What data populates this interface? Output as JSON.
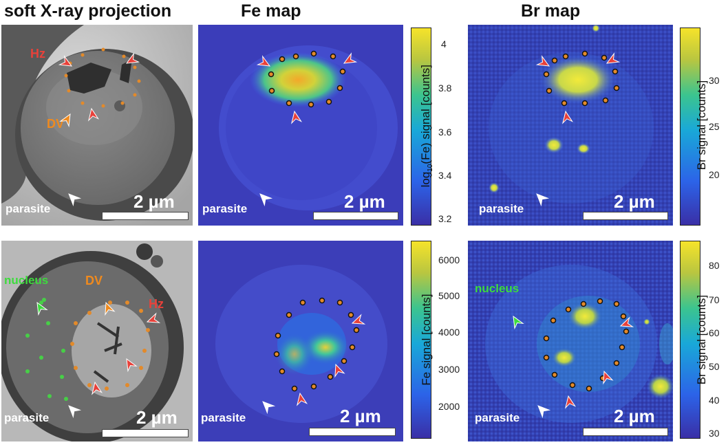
{
  "titles": {
    "xray": "soft X-ray projection",
    "fe": "Fe map",
    "br": "Br map"
  },
  "labels": {
    "parasite": "parasite",
    "scale": "2 µm",
    "hz": "Hz",
    "dv": "DV",
    "nucleus": "nucleus"
  },
  "colorbars": {
    "fe_top": {
      "label_prefix": "log",
      "label_sub": "10",
      "label_suffix": "(Fe) signal [counts]",
      "ticks": [
        "4",
        "3.8",
        "3.6",
        "3.4",
        "3.2"
      ]
    },
    "br_top": {
      "label": "Br signal [counts]",
      "ticks": [
        "30",
        "25",
        "20"
      ]
    },
    "fe_bottom": {
      "label": "Fe signal [counts]",
      "ticks": [
        "6000",
        "5000",
        "4000",
        "3000",
        "2000"
      ]
    },
    "br_bottom": {
      "label": "Br signal [counts]",
      "ticks": [
        "80",
        "70",
        "60",
        "50",
        "40",
        "30"
      ]
    }
  },
  "colors": {
    "hz": "#e8413a",
    "dv": "#ef8a1e",
    "nucleus": "#3ddc3d",
    "marker_dot": "#e38a2a",
    "nucleus_dot": "#47cf47"
  }
}
